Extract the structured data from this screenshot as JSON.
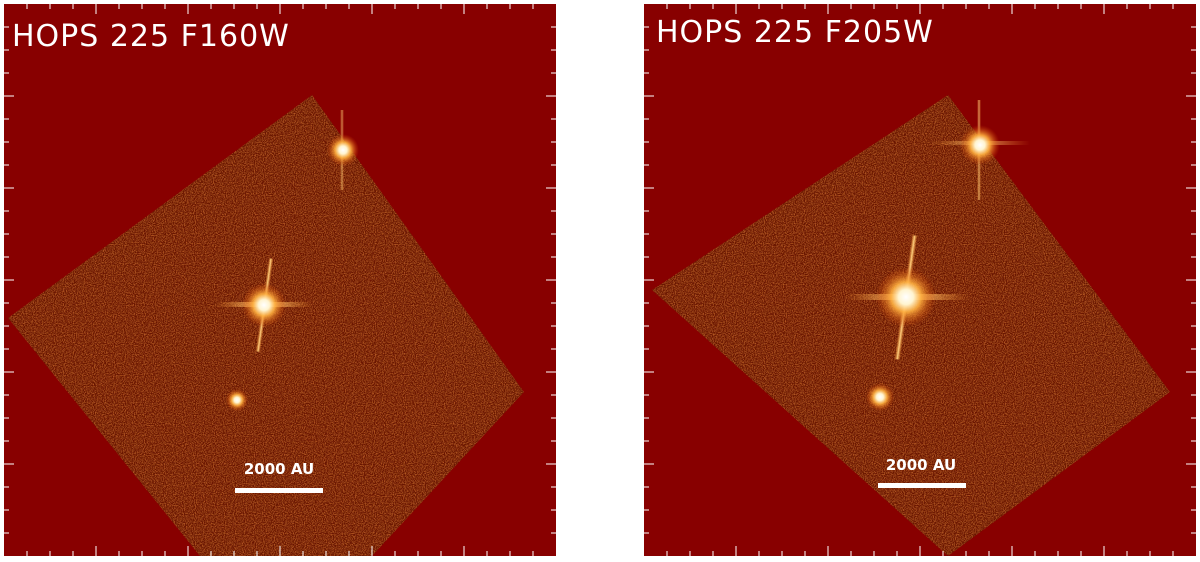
{
  "panels": [
    {
      "title": "HOPS 225 F160W",
      "scale_label": "2000 AU"
    },
    {
      "title": "HOPS 225 F205W",
      "scale_label": "2000 AU"
    }
  ]
}
